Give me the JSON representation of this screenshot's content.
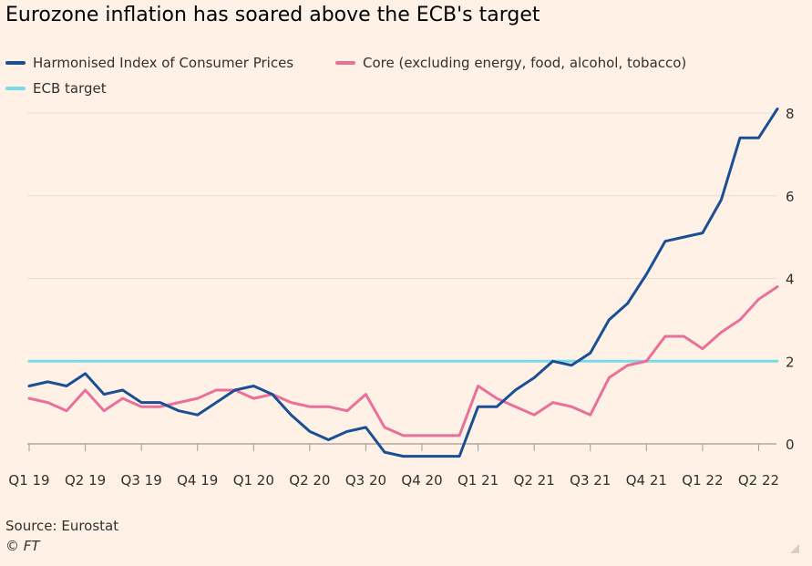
{
  "title": "Eurozone inflation has soared above the ECB's target",
  "legend": [
    {
      "label": "Harmonised Index of Consumer Prices",
      "color": "#1a4f96"
    },
    {
      "label": "Core (excluding energy, food, alcohol, tobacco)",
      "color": "#e8709a"
    },
    {
      "label": "ECB target",
      "color": "#78dbe8"
    }
  ],
  "source": "Source: Eurostat",
  "copyright": "© FT",
  "chart_data": {
    "type": "line",
    "x_tick_labels": [
      "Q1 19",
      "Q2 19",
      "Q3 19",
      "Q4 19",
      "Q1 20",
      "Q2 20",
      "Q3 20",
      "Q4 20",
      "Q1 21",
      "Q2 21",
      "Q3 21",
      "Q4 21",
      "Q1 22",
      "Q2 22"
    ],
    "y_ticks": [
      0,
      2,
      4,
      6,
      8
    ],
    "ylim": [
      -0.3,
      8.2
    ],
    "x_start": "2019-01",
    "x_end": "2022-06",
    "target": 2,
    "series": [
      {
        "name": "Harmonised Index of Consumer Prices",
        "color": "#1a4f96",
        "values": [
          1.4,
          1.5,
          1.4,
          1.7,
          1.2,
          1.3,
          1.0,
          1.0,
          0.8,
          0.7,
          1.0,
          1.3,
          1.4,
          1.2,
          0.7,
          0.3,
          0.1,
          0.3,
          0.4,
          -0.2,
          -0.3,
          -0.3,
          -0.3,
          -0.3,
          0.9,
          0.9,
          1.3,
          1.6,
          2.0,
          1.9,
          2.2,
          3.0,
          3.4,
          4.1,
          4.9,
          5.0,
          5.1,
          5.9,
          7.4,
          7.4,
          8.1
        ]
      },
      {
        "name": "Core (excluding energy, food, alcohol, tobacco)",
        "color": "#e8709a",
        "values": [
          1.1,
          1.0,
          0.8,
          1.3,
          0.8,
          1.1,
          0.9,
          0.9,
          1.0,
          1.1,
          1.3,
          1.3,
          1.1,
          1.2,
          1.0,
          0.9,
          0.9,
          0.8,
          1.2,
          0.4,
          0.2,
          0.2,
          0.2,
          0.2,
          1.4,
          1.1,
          0.9,
          0.7,
          1.0,
          0.9,
          0.7,
          1.6,
          1.9,
          2.0,
          2.6,
          2.6,
          2.3,
          2.7,
          3.0,
          3.5,
          3.8
        ]
      },
      {
        "name": "ECB target",
        "color": "#78dbe8",
        "values": [
          2,
          2,
          2,
          2,
          2,
          2,
          2,
          2,
          2,
          2,
          2,
          2,
          2,
          2,
          2,
          2,
          2,
          2,
          2,
          2,
          2,
          2,
          2,
          2,
          2,
          2,
          2,
          2,
          2,
          2,
          2,
          2,
          2,
          2,
          2,
          2,
          2,
          2,
          2,
          2,
          2
        ]
      }
    ]
  }
}
